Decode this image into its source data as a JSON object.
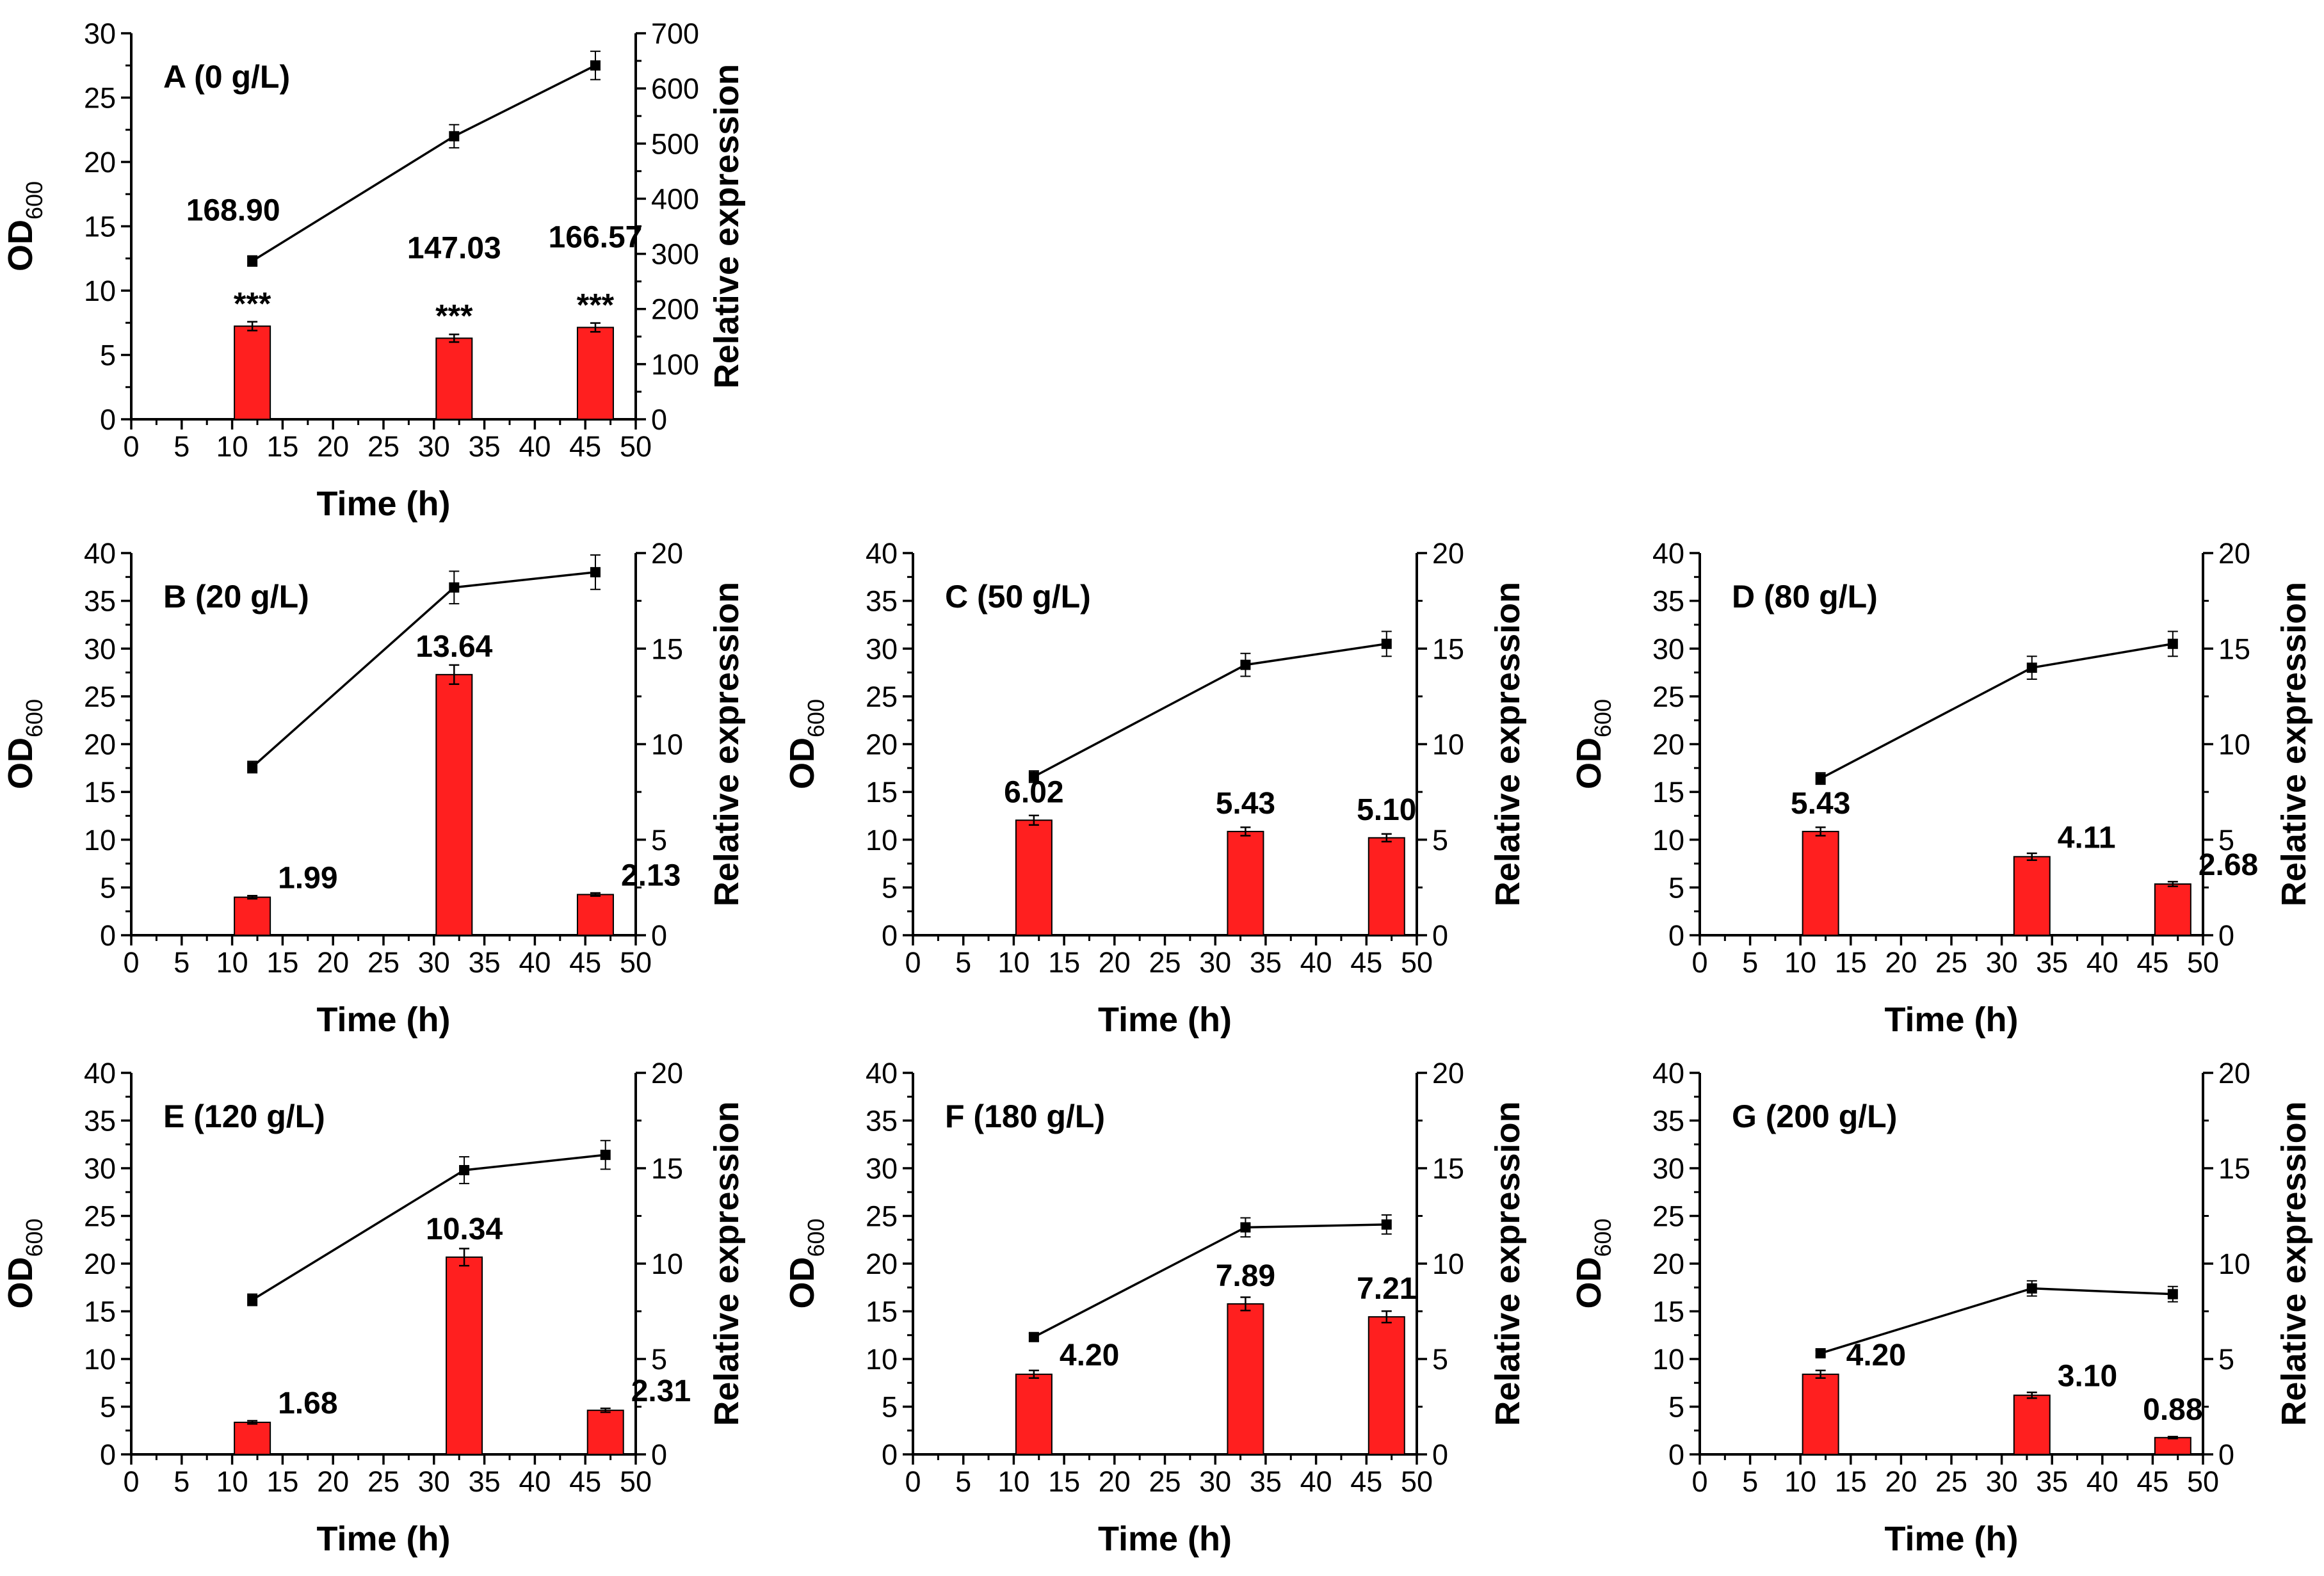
{
  "colors": {
    "bar": "#ff1f1f",
    "line": "#000000",
    "marker": "#000000",
    "axis": "#000000"
  },
  "chart_data": [
    {
      "type": "bar+line",
      "title": "A (0 g/L)",
      "xlabel": "Time (h)",
      "ylabel_left": "OD600",
      "ylabel_left_main": "OD",
      "ylabel_left_sub": "600",
      "ylabel_right": "Relative expression",
      "xlim": [
        0,
        50
      ],
      "xticks": [
        0,
        5,
        10,
        15,
        20,
        25,
        30,
        35,
        40,
        45,
        50
      ],
      "ylim_left": [
        0,
        30
      ],
      "yticks_left": [
        0,
        5,
        10,
        15,
        20,
        25,
        30
      ],
      "ylim_right": [
        0,
        700
      ],
      "yticks_right": [
        0,
        100,
        200,
        300,
        400,
        500,
        600,
        700
      ],
      "line_series": {
        "name": "OD600",
        "x": [
          12,
          32,
          46
        ],
        "y": [
          12.3,
          22.0,
          27.5
        ],
        "err": [
          0.4,
          0.9,
          1.1
        ]
      },
      "bar_series": {
        "name": "Relative expression",
        "x": [
          12,
          32,
          46
        ],
        "values": [
          168.9,
          147.03,
          166.57
        ],
        "err": [
          8,
          7,
          8
        ],
        "labels": [
          "168.90",
          "147.03",
          "166.57"
        ],
        "significance": [
          "***",
          "***",
          "***"
        ]
      }
    },
    {
      "type": "bar+line",
      "title": "B (20 g/L)",
      "xlabel": "Time (h)",
      "ylabel_left": "OD600",
      "ylabel_left_main": "OD",
      "ylabel_left_sub": "600",
      "ylabel_right": "Relative expression",
      "xlim": [
        0,
        50
      ],
      "xticks": [
        0,
        5,
        10,
        15,
        20,
        25,
        30,
        35,
        40,
        45,
        50
      ],
      "ylim_left": [
        0,
        40
      ],
      "yticks_left": [
        0,
        5,
        10,
        15,
        20,
        25,
        30,
        35,
        40
      ],
      "ylim_right": [
        0,
        20
      ],
      "yticks_right": [
        0,
        5,
        10,
        15,
        20
      ],
      "line_series": {
        "name": "OD600",
        "x": [
          12,
          32,
          46
        ],
        "y": [
          17.6,
          36.4,
          38.0
        ],
        "err": [
          0.6,
          1.7,
          1.8
        ]
      },
      "bar_series": {
        "name": "Relative expression",
        "x": [
          12,
          32,
          46
        ],
        "values": [
          1.99,
          13.64,
          2.13
        ],
        "err": [
          0.08,
          0.5,
          0.08
        ],
        "labels": [
          "1.99",
          "13.64",
          "2.13"
        ],
        "significance": []
      }
    },
    {
      "type": "bar+line",
      "title": "C (50 g/L)",
      "xlabel": "Time (h)",
      "ylabel_left": "OD600",
      "ylabel_left_main": "OD",
      "ylabel_left_sub": "600",
      "ylabel_right": "Relative expression",
      "xlim": [
        0,
        50
      ],
      "xticks": [
        0,
        5,
        10,
        15,
        20,
        25,
        30,
        35,
        40,
        45,
        50
      ],
      "ylim_left": [
        0,
        40
      ],
      "yticks_left": [
        0,
        5,
        10,
        15,
        20,
        25,
        30,
        35,
        40
      ],
      "ylim_right": [
        0,
        20
      ],
      "yticks_right": [
        0,
        5,
        10,
        15,
        20
      ],
      "line_series": {
        "name": "OD600",
        "x": [
          12,
          33,
          47
        ],
        "y": [
          16.6,
          28.3,
          30.5
        ],
        "err": [
          0.6,
          1.2,
          1.3
        ]
      },
      "bar_series": {
        "name": "Relative expression",
        "x": [
          12,
          33,
          47
        ],
        "values": [
          6.02,
          5.43,
          5.1
        ],
        "err": [
          0.25,
          0.22,
          0.2
        ],
        "labels": [
          "6.02",
          "5.43",
          "5.10"
        ],
        "significance": []
      }
    },
    {
      "type": "bar+line",
      "title": "D (80 g/L)",
      "xlabel": "Time (h)",
      "ylabel_left": "OD600",
      "ylabel_left_main": "OD",
      "ylabel_left_sub": "600",
      "ylabel_right": "Relative expression",
      "xlim": [
        0,
        50
      ],
      "xticks": [
        0,
        5,
        10,
        15,
        20,
        25,
        30,
        35,
        40,
        45,
        50
      ],
      "ylim_left": [
        0,
        40
      ],
      "yticks_left": [
        0,
        5,
        10,
        15,
        20,
        25,
        30,
        35,
        40
      ],
      "ylim_right": [
        0,
        20
      ],
      "yticks_right": [
        0,
        5,
        10,
        15,
        20
      ],
      "line_series": {
        "name": "OD600",
        "x": [
          12,
          33,
          47
        ],
        "y": [
          16.4,
          28.0,
          30.5
        ],
        "err": [
          0.6,
          1.2,
          1.3
        ]
      },
      "bar_series": {
        "name": "Relative expression",
        "x": [
          12,
          33,
          47
        ],
        "values": [
          5.43,
          4.11,
          2.68
        ],
        "err": [
          0.22,
          0.18,
          0.12
        ],
        "labels": [
          "5.43",
          "4.11",
          "2.68"
        ],
        "significance": []
      }
    },
    {
      "type": "bar+line",
      "title": "E (120 g/L)",
      "xlabel": "Time (h)",
      "ylabel_left": "OD600",
      "ylabel_left_main": "OD",
      "ylabel_left_sub": "600",
      "ylabel_right": "Relative expression",
      "xlim": [
        0,
        50
      ],
      "xticks": [
        0,
        5,
        10,
        15,
        20,
        25,
        30,
        35,
        40,
        45,
        50
      ],
      "ylim_left": [
        0,
        40
      ],
      "yticks_left": [
        0,
        5,
        10,
        15,
        20,
        25,
        30,
        35,
        40
      ],
      "ylim_right": [
        0,
        20
      ],
      "yticks_right": [
        0,
        5,
        10,
        15,
        20
      ],
      "line_series": {
        "name": "OD600",
        "x": [
          12,
          33,
          47
        ],
        "y": [
          16.2,
          29.8,
          31.4
        ],
        "err": [
          0.6,
          1.4,
          1.5
        ]
      },
      "bar_series": {
        "name": "Relative expression",
        "x": [
          12,
          33,
          47
        ],
        "values": [
          1.68,
          10.34,
          2.31
        ],
        "err": [
          0.08,
          0.45,
          0.1
        ],
        "labels": [
          "1.68",
          "10.34",
          "2.31"
        ],
        "significance": []
      }
    },
    {
      "type": "bar+line",
      "title": "F (180 g/L)",
      "xlabel": "Time (h)",
      "ylabel_left": "OD600",
      "ylabel_left_main": "OD",
      "ylabel_left_sub": "600",
      "ylabel_right": "Relative expression",
      "xlim": [
        0,
        50
      ],
      "xticks": [
        0,
        5,
        10,
        15,
        20,
        25,
        30,
        35,
        40,
        45,
        50
      ],
      "ylim_left": [
        0,
        40
      ],
      "yticks_left": [
        0,
        5,
        10,
        15,
        20,
        25,
        30,
        35,
        40
      ],
      "ylim_right": [
        0,
        20
      ],
      "yticks_right": [
        0,
        5,
        10,
        15,
        20
      ],
      "line_series": {
        "name": "OD600",
        "x": [
          12,
          33,
          47
        ],
        "y": [
          12.3,
          23.8,
          24.1
        ],
        "err": [
          0.4,
          1.0,
          1.0
        ]
      },
      "bar_series": {
        "name": "Relative expression",
        "x": [
          12,
          33,
          47
        ],
        "values": [
          4.2,
          7.89,
          7.21
        ],
        "err": [
          0.2,
          0.35,
          0.3
        ],
        "labels": [
          "4.20",
          "7.89",
          "7.21"
        ],
        "significance": []
      }
    },
    {
      "type": "bar+line",
      "title": "G (200 g/L)",
      "xlabel": "Time (h)",
      "ylabel_left": "OD600",
      "ylabel_left_main": "OD",
      "ylabel_left_sub": "600",
      "ylabel_right": "Relative expression",
      "xlim": [
        0,
        50
      ],
      "xticks": [
        0,
        5,
        10,
        15,
        20,
        25,
        30,
        35,
        40,
        45,
        50
      ],
      "ylim_left": [
        0,
        40
      ],
      "yticks_left": [
        0,
        5,
        10,
        15,
        20,
        25,
        30,
        35,
        40
      ],
      "ylim_right": [
        0,
        20
      ],
      "yticks_right": [
        0,
        5,
        10,
        15,
        20
      ],
      "line_series": {
        "name": "OD600",
        "x": [
          12,
          33,
          47
        ],
        "y": [
          10.6,
          17.4,
          16.8
        ],
        "err": [
          0.3,
          0.8,
          0.8
        ]
      },
      "bar_series": {
        "name": "Relative expression",
        "x": [
          12,
          33,
          47
        ],
        "values": [
          4.2,
          3.1,
          0.88
        ],
        "err": [
          0.2,
          0.15,
          0.05
        ],
        "labels": [
          "4.20",
          "3.10",
          "0.88"
        ],
        "significance": []
      }
    }
  ]
}
